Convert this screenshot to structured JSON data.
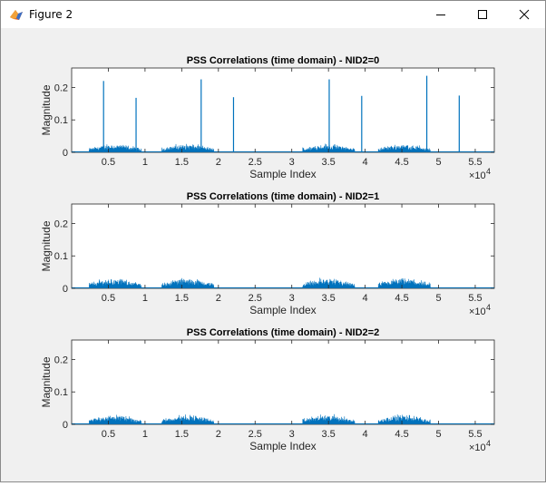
{
  "window": {
    "title": "Figure 2",
    "icons": [
      "matlab-figure-icon",
      "minimize-icon",
      "maximize-icon",
      "close-icon"
    ]
  },
  "axes_common": {
    "xlabel": "Sample Index",
    "ylabel": "Magnitude",
    "x_exponent": "×10",
    "x_exponent_power": "4",
    "x_ticks": [
      0.5,
      1,
      1.5,
      2,
      2.5,
      3,
      3.5,
      4,
      4.5,
      5,
      5.5
    ],
    "x_tick_labels": [
      "0.5",
      "1",
      "1.5",
      "2",
      "2.5",
      "3",
      "3.5",
      "4",
      "4.5",
      "5",
      "5.5"
    ],
    "y_ticks": [
      0,
      0.1,
      0.2
    ],
    "y_tick_labels": [
      "0",
      "0.1",
      "0.2"
    ],
    "xlim": [
      0,
      57600
    ],
    "ylim": [
      0,
      0.26
    ],
    "line_color": "#0072bd"
  },
  "chart_data": [
    {
      "type": "line",
      "title": "PSS Correlations (time domain) - NID2=0",
      "xlabel": "Sample Index",
      "ylabel": "Magnitude",
      "xlim": [
        0,
        57600
      ],
      "ylim": [
        0,
        0.26
      ],
      "grid": false,
      "noise_segments": [
        [
          2400,
          9500
        ],
        [
          12300,
          19400
        ],
        [
          31500,
          38600
        ],
        [
          41800,
          48900
        ]
      ],
      "noise_level": 0.022,
      "peaks": [
        {
          "x": 4350,
          "y": 0.22
        },
        {
          "x": 8780,
          "y": 0.168
        },
        {
          "x": 17650,
          "y": 0.225
        },
        {
          "x": 22060,
          "y": 0.17
        },
        {
          "x": 35100,
          "y": 0.225
        },
        {
          "x": 39530,
          "y": 0.174
        },
        {
          "x": 48400,
          "y": 0.236
        },
        {
          "x": 52820,
          "y": 0.175
        }
      ]
    },
    {
      "type": "line",
      "title": "PSS Correlations (time domain) - NID2=1",
      "xlabel": "Sample Index",
      "ylabel": "Magnitude",
      "xlim": [
        0,
        57600
      ],
      "ylim": [
        0,
        0.26
      ],
      "grid": false,
      "noise_segments": [
        [
          2400,
          9500
        ],
        [
          12300,
          19400
        ],
        [
          31500,
          38600
        ],
        [
          41800,
          48900
        ]
      ],
      "noise_level": 0.027,
      "peaks": []
    },
    {
      "type": "line",
      "title": "PSS Correlations (time domain) - NID2=2",
      "xlabel": "Sample Index",
      "ylabel": "Magnitude",
      "xlim": [
        0,
        57600
      ],
      "ylim": [
        0,
        0.26
      ],
      "grid": false,
      "noise_segments": [
        [
          2400,
          9500
        ],
        [
          12300,
          19400
        ],
        [
          31500,
          38600
        ],
        [
          41800,
          48900
        ]
      ],
      "noise_level": 0.026,
      "peaks": []
    }
  ]
}
